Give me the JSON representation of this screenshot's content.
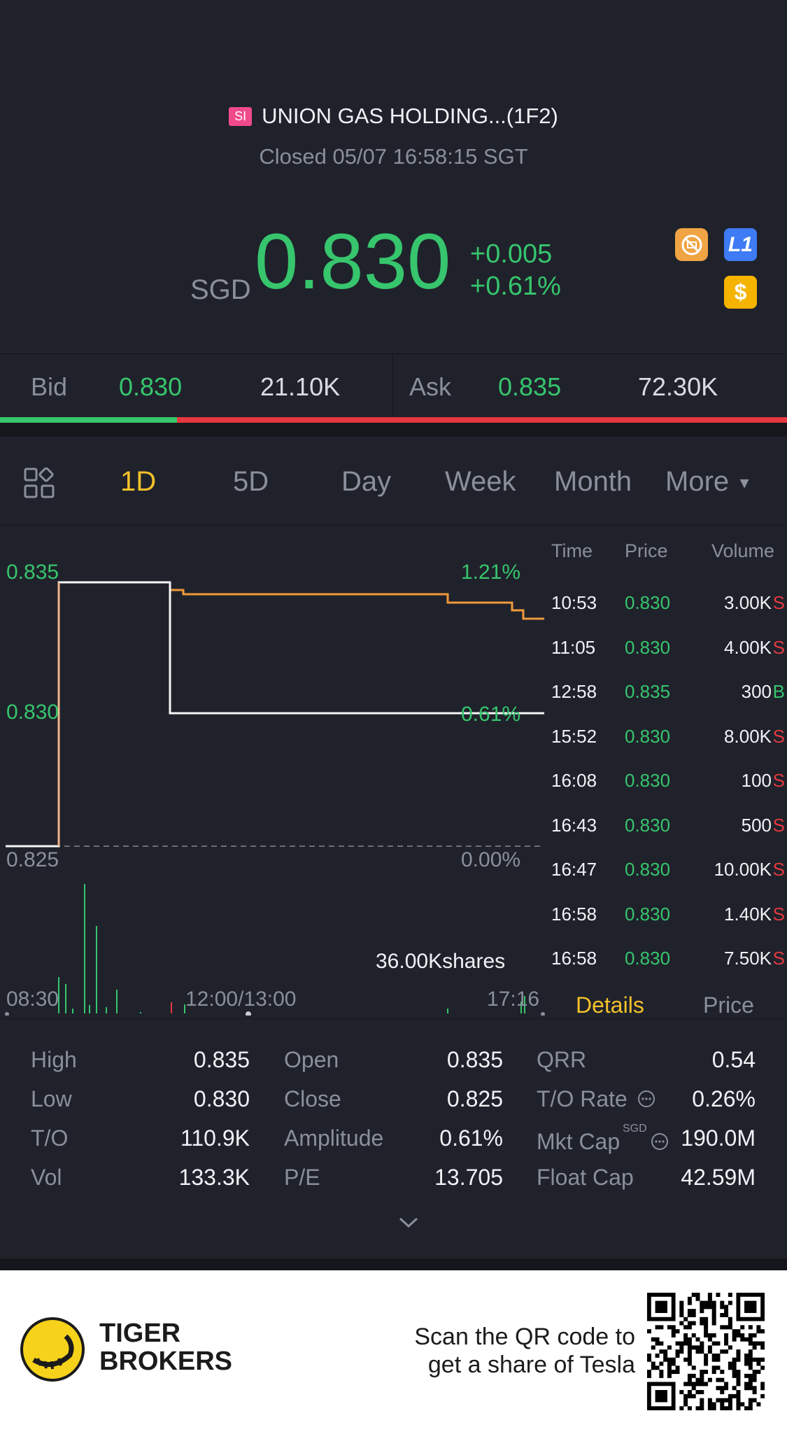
{
  "header": {
    "market_tag": "SI",
    "title": "UNION GAS HOLDING...(1F2)",
    "status": "Closed 05/07 16:58:15 SGT",
    "currency": "SGD",
    "price": "0.830",
    "change": "+0.005",
    "change_pct": "+0.61%",
    "badges": [
      "no-short-icon",
      "L1",
      "$"
    ]
  },
  "bidask": {
    "bid_label": "Bid",
    "bid_price": "0.830",
    "bid_size": "21.10K",
    "ask_label": "Ask",
    "ask_price": "0.835",
    "ask_size": "72.30K",
    "bid_ratio": 0.225
  },
  "tabs": {
    "items": [
      "1D",
      "5D",
      "Day",
      "Week",
      "Month",
      "More"
    ],
    "active": "1D"
  },
  "chart": {
    "y_top": "0.835",
    "y_mid": "0.830",
    "y_bottom": "0.825",
    "pct_top": "1.21%",
    "pct_mid": "0.61%",
    "pct_bottom": "0.00%",
    "volume_label": "36.00Kshares",
    "x_start": "08:30",
    "x_mid": "12:00/13:00",
    "x_end": "17:16"
  },
  "ticks": {
    "headers": {
      "time": "Time",
      "price": "Price",
      "volume": "Volume"
    },
    "rows": [
      {
        "time": "10:53",
        "price": "0.830",
        "vol": "3.00K",
        "side": "S"
      },
      {
        "time": "11:05",
        "price": "0.830",
        "vol": "4.00K",
        "side": "S"
      },
      {
        "time": "12:58",
        "price": "0.835",
        "vol": "300",
        "side": "B"
      },
      {
        "time": "15:52",
        "price": "0.830",
        "vol": "8.00K",
        "side": "S"
      },
      {
        "time": "16:08",
        "price": "0.830",
        "vol": "100",
        "side": "S"
      },
      {
        "time": "16:43",
        "price": "0.830",
        "vol": "500",
        "side": "S"
      },
      {
        "time": "16:47",
        "price": "0.830",
        "vol": "10.00K",
        "side": "S"
      },
      {
        "time": "16:58",
        "price": "0.830",
        "vol": "1.40K",
        "side": "S"
      },
      {
        "time": "16:58",
        "price": "0.830",
        "vol": "7.50K",
        "side": "S"
      }
    ],
    "tab_details": "Details",
    "tab_price": "Price"
  },
  "details": {
    "high_label": "High",
    "high": "0.835",
    "low_label": "Low",
    "low": "0.830",
    "to_label": "T/O",
    "to": "110.9K",
    "vol_label": "Vol",
    "vol": "133.3K",
    "open_label": "Open",
    "open": "0.835",
    "close_label": "Close",
    "close": "0.825",
    "amp_label": "Amplitude",
    "amp": "0.61%",
    "pe_label": "P/E",
    "pe": "13.705",
    "qrr_label": "QRR",
    "qrr": "0.54",
    "torate_label": "T/O Rate",
    "torate": "0.26%",
    "mktcap_label": "Mkt Cap",
    "mktcap_unit": "SGD",
    "mktcap": "190.0M",
    "floatcap_label": "Float Cap",
    "floatcap": "42.59M"
  },
  "footer": {
    "brand_line1": "TIGER",
    "brand_line2": "BROKERS",
    "scan_line1": "Scan the QR code to",
    "scan_line2": "get a share of Tesla"
  }
}
